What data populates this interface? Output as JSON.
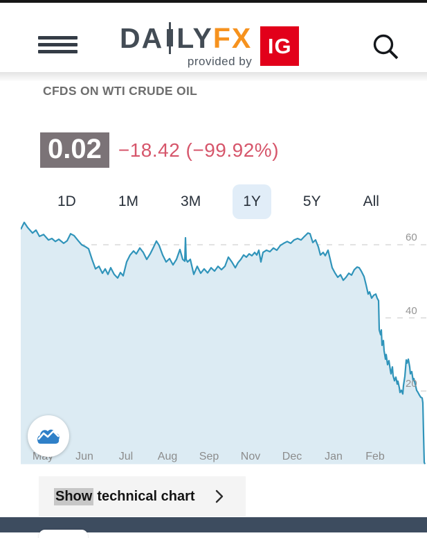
{
  "header": {
    "brand_primary_left": "DA",
    "brand_primary_right": "LY",
    "brand_secondary": "FX",
    "provided_by": "provided by",
    "ig_label": "IG"
  },
  "instrument": {
    "title": "CFDS ON WTI CRUDE OIL",
    "price": "0.02",
    "change": "−18.42 (−99.92%)"
  },
  "range_tabs": {
    "selected": "1Y",
    "items": [
      {
        "label": "1D"
      },
      {
        "label": "1M"
      },
      {
        "label": "3M"
      },
      {
        "label": "1Y"
      },
      {
        "label": "5Y"
      },
      {
        "label": "All"
      }
    ]
  },
  "chart_data": {
    "type": "area",
    "title": "CFDS ON WTI CRUDE OIL — 1Y range",
    "x_axis_labels": [
      "May",
      "Jun",
      "Jul",
      "Aug",
      "Sep",
      "Nov",
      "Dec",
      "Jan",
      "Feb"
    ],
    "y_ticks": [
      20,
      40,
      60
    ],
    "ylim": [
      0,
      67
    ],
    "grid": "dashed horizontal, labels right",
    "line_color": "#3094ba",
    "fill_color": "#dcebf3",
    "grid_color": "#d8d8d8",
    "last_value": 0.02,
    "points": [
      [
        0,
        64.2
      ],
      [
        5,
        66.1
      ],
      [
        10,
        64.7
      ],
      [
        17,
        63.2
      ],
      [
        22,
        64
      ],
      [
        27,
        62.3
      ],
      [
        33,
        62.8
      ],
      [
        40,
        61.3
      ],
      [
        45,
        61.7
      ],
      [
        50,
        60.9
      ],
      [
        55,
        61.5
      ],
      [
        62,
        60.4
      ],
      [
        67,
        61.1
      ],
      [
        72,
        63
      ],
      [
        77,
        62.5
      ],
      [
        83,
        61.1
      ],
      [
        88,
        60
      ],
      [
        93,
        59.5
      ],
      [
        98,
        58.9
      ],
      [
        103,
        56
      ],
      [
        108,
        53.4
      ],
      [
        113,
        54.1
      ],
      [
        118,
        52.2
      ],
      [
        122,
        53.4
      ],
      [
        126,
        51.9
      ],
      [
        130,
        53.7
      ],
      [
        135,
        51.9
      ],
      [
        140,
        50.9
      ],
      [
        144,
        52.4
      ],
      [
        148,
        51.5
      ],
      [
        153,
        55.3
      ],
      [
        158,
        57.2
      ],
      [
        163,
        58.3
      ],
      [
        167,
        57.5
      ],
      [
        172,
        59.1
      ],
      [
        177,
        57.9
      ],
      [
        182,
        56
      ],
      [
        187,
        57.5
      ],
      [
        192,
        59.4
      ],
      [
        196,
        61
      ],
      [
        200,
        59.8
      ],
      [
        205,
        57.2
      ],
      [
        210,
        55.3
      ],
      [
        215,
        56.2
      ],
      [
        220,
        54.5
      ],
      [
        225,
        56
      ],
      [
        230,
        58.7
      ],
      [
        234,
        56
      ],
      [
        237,
        55.5
      ],
      [
        238,
        61.9
      ],
      [
        239,
        56
      ],
      [
        241,
        55.3
      ],
      [
        245,
        56
      ],
      [
        250,
        51.9
      ],
      [
        255,
        54.1
      ],
      [
        260,
        52.2
      ],
      [
        265,
        53.4
      ],
      [
        270,
        52.3
      ],
      [
        275,
        53.7
      ],
      [
        280,
        52.8
      ],
      [
        285,
        54.1
      ],
      [
        290,
        53.2
      ],
      [
        295,
        54.1
      ],
      [
        300,
        56.6
      ],
      [
        305,
        55.3
      ],
      [
        310,
        53.7
      ],
      [
        314,
        55.1
      ],
      [
        318,
        56
      ],
      [
        322,
        57.2
      ],
      [
        326,
        56.6
      ],
      [
        330,
        57.5
      ],
      [
        334,
        57
      ],
      [
        338,
        57.9
      ],
      [
        341,
        57.2
      ],
      [
        344,
        58.5
      ],
      [
        347,
        55.3
      ],
      [
        350,
        57.9
      ],
      [
        355,
        58.5
      ],
      [
        360,
        58.1
      ],
      [
        365,
        59.1
      ],
      [
        370,
        58.5
      ],
      [
        375,
        59.8
      ],
      [
        380,
        60.4
      ],
      [
        385,
        60.9
      ],
      [
        390,
        60.4
      ],
      [
        395,
        61.3
      ],
      [
        400,
        61.7
      ],
      [
        405,
        61.3
      ],
      [
        410,
        62.3
      ],
      [
        415,
        63.2
      ],
      [
        418,
        63
      ],
      [
        422,
        60.6
      ],
      [
        426,
        61.3
      ],
      [
        430,
        59.4
      ],
      [
        433,
        57.2
      ],
      [
        437,
        57.9
      ],
      [
        440,
        57
      ],
      [
        444,
        58.5
      ],
      [
        448,
        55.3
      ],
      [
        450,
        53.7
      ],
      [
        454,
        52.3
      ],
      [
        458,
        51.1
      ],
      [
        462,
        51.8
      ],
      [
        466,
        50.3
      ],
      [
        470,
        51.1
      ],
      [
        474,
        52.2
      ],
      [
        478,
        51.7
      ],
      [
        482,
        53.2
      ],
      [
        486,
        53.9
      ],
      [
        489,
        53.7
      ],
      [
        492,
        52.8
      ],
      [
        496,
        51.3
      ],
      [
        499,
        49
      ],
      [
        502,
        46.5
      ],
      [
        504,
        47.1
      ],
      [
        507,
        45.4
      ],
      [
        510,
        46.2
      ],
      [
        513,
        46.5
      ],
      [
        515,
        45.4
      ],
      [
        517,
        44.7
      ],
      [
        518,
        36.7
      ],
      [
        520,
        35.4
      ],
      [
        521,
        36.7
      ],
      [
        522,
        32.5
      ],
      [
        524,
        33.8
      ],
      [
        525,
        31
      ],
      [
        527,
        28.7
      ],
      [
        528,
        30
      ],
      [
        530,
        27.2
      ],
      [
        532,
        28.3
      ],
      [
        534,
        25.7
      ],
      [
        535,
        24.7
      ],
      [
        537,
        26.6
      ],
      [
        538,
        24.2
      ],
      [
        540,
        22.8
      ],
      [
        542,
        23.8
      ],
      [
        544,
        21.9
      ],
      [
        545,
        22.7
      ],
      [
        547,
        20.9
      ],
      [
        548,
        19.6
      ],
      [
        550,
        20.2
      ],
      [
        552,
        19.2
      ],
      [
        553,
        21.5
      ],
      [
        555,
        24
      ],
      [
        557,
        28.5
      ],
      [
        558,
        27.6
      ],
      [
        560,
        28.7
      ],
      [
        562,
        26.6
      ],
      [
        563,
        24.7
      ],
      [
        565,
        25.3
      ],
      [
        567,
        22.8
      ],
      [
        568,
        23.4
      ],
      [
        570,
        21.9
      ],
      [
        572,
        20.2
      ],
      [
        574,
        19.6
      ],
      [
        576,
        18.9
      ],
      [
        578,
        18.3
      ],
      [
        580,
        18.1
      ],
      [
        581,
        16.8
      ],
      [
        582,
        8.2
      ],
      [
        583,
        0.5
      ],
      [
        584,
        0.02
      ]
    ]
  },
  "footer": {
    "show_chart_prefix": "Show",
    "show_chart_rest": "technical chart"
  },
  "colors": {
    "accent_orange": "#f6921e",
    "ig_red": "#e2001a",
    "negative": "#d6566b",
    "price_box_bg": "#7b7377",
    "selected_tab_bg": "#e1edf8",
    "bottom_bar": "#3d4c5f"
  }
}
